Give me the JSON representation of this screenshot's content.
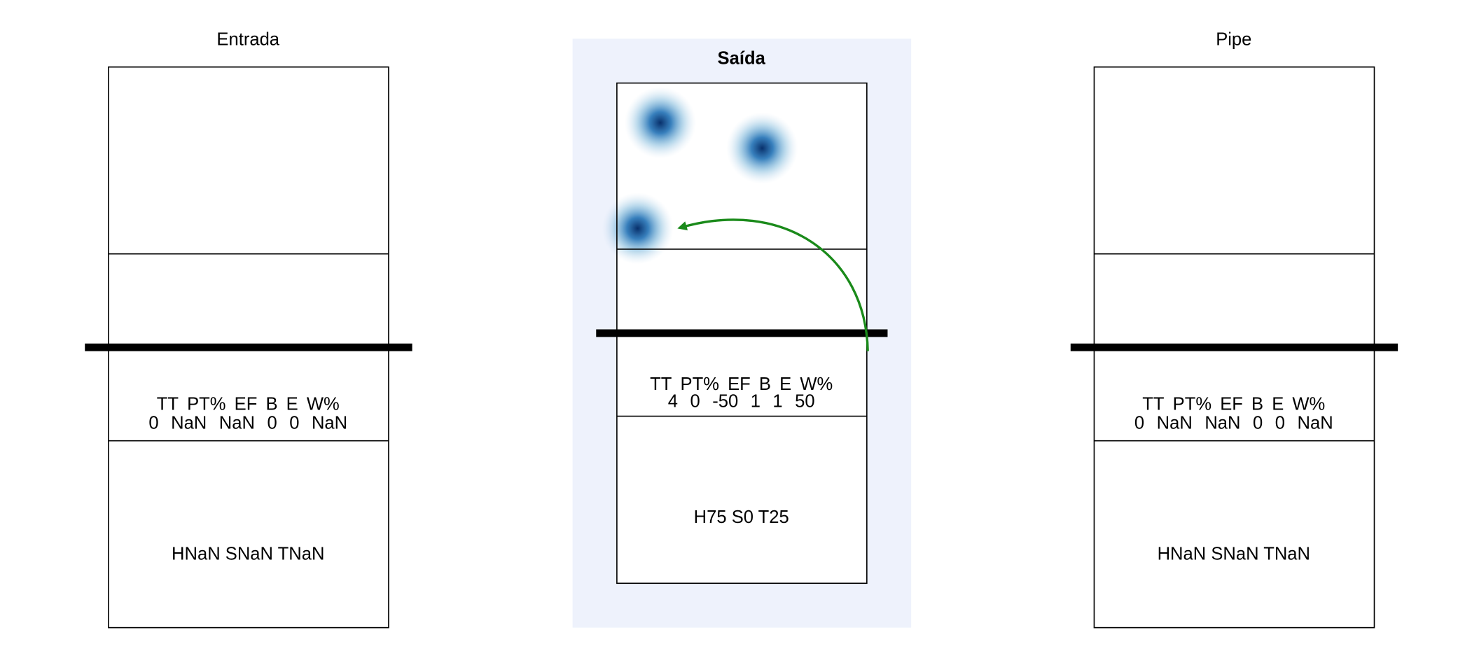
{
  "panels": [
    {
      "title": "Entrada",
      "stats_header": [
        "TT",
        "PT%",
        "EF",
        "B",
        "E",
        "W%"
      ],
      "stats_values": [
        0,
        "NaN",
        "NaN",
        0,
        0,
        "NaN"
      ],
      "summary": "HNaN SNaN TNaN"
    },
    {
      "title": "Saída",
      "stats_header": [
        "TT",
        "PT%",
        "EF",
        "B",
        "E",
        "W%"
      ],
      "stats_values": [
        4,
        0,
        -50,
        1,
        1,
        50
      ],
      "summary": "H75 S0 T25"
    },
    {
      "title": "Pipe",
      "stats_header": [
        "TT",
        "PT%",
        "EF",
        "B",
        "E",
        "W%"
      ],
      "stats_values": [
        0,
        "NaN",
        "NaN",
        0,
        0,
        "NaN"
      ],
      "summary": "HNaN SNaN TNaN"
    }
  ]
}
